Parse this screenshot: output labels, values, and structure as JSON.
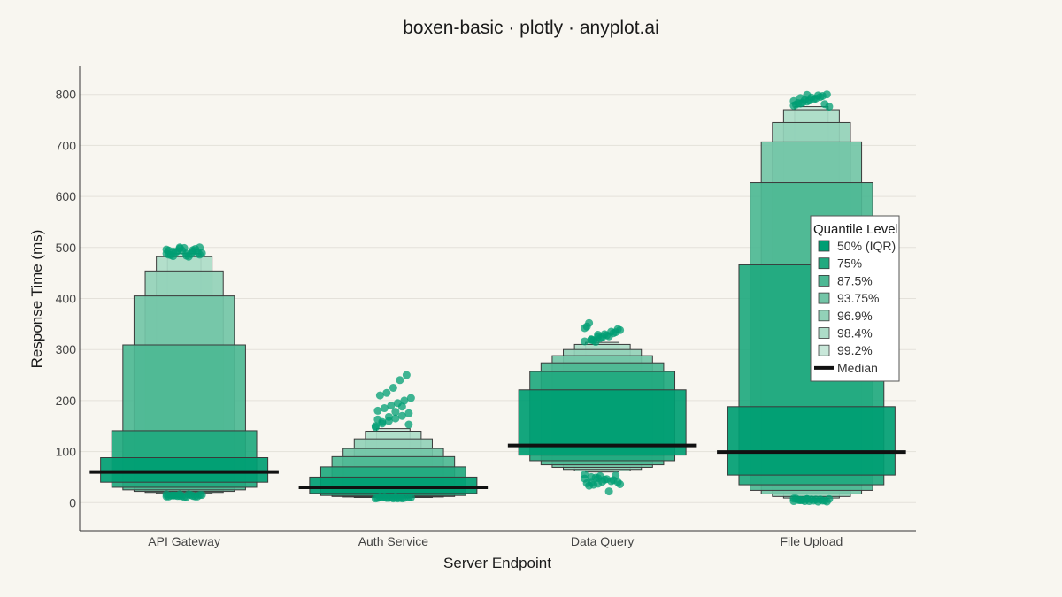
{
  "chart_data": {
    "type": "boxen",
    "title": "boxen-basic · plotly · anyplot.ai",
    "xlabel": "Server Endpoint",
    "ylabel": "Response Time (ms)",
    "categories": [
      "API Gateway",
      "Auth Service",
      "Data Query",
      "File Upload"
    ],
    "ylim": [
      -55,
      855
    ],
    "yticks": [
      0,
      100,
      200,
      300,
      400,
      500,
      600,
      700,
      800
    ],
    "grid": true,
    "legend": {
      "title": "Quantile Level",
      "placement": "right",
      "entries": [
        {
          "label": "50% (IQR)",
          "color": "#009E73"
        },
        {
          "label": "75%",
          "color": "#21A97F"
        },
        {
          "label": "87.5%",
          "color": "#4DB894"
        },
        {
          "label": "93.75%",
          "color": "#73C5A7"
        },
        {
          "label": "96.9%",
          "color": "#92D1B8"
        },
        {
          "label": "98.4%",
          "color": "#ADDCC8"
        },
        {
          "label": "99.2%",
          "color": "#C8E7D9"
        },
        {
          "label": "Median",
          "color": "#111111"
        }
      ]
    },
    "series": [
      {
        "category": "API Gateway",
        "median": 60,
        "levels": [
          {
            "level": "50% (IQR)",
            "low": 40,
            "high": 88
          },
          {
            "level": "75%",
            "low": 30,
            "high": 141
          },
          {
            "level": "87.5%",
            "low": 25,
            "high": 309
          },
          {
            "level": "93.75%",
            "low": 22,
            "high": 405
          },
          {
            "level": "96.9%",
            "low": 20,
            "high": 454
          },
          {
            "level": "98.4%",
            "low": 18,
            "high": 482
          },
          {
            "level": "99.2%",
            "low": 16,
            "high": 488
          }
        ],
        "outliers_low": [
          12,
          14,
          16,
          11,
          13,
          15,
          12,
          14,
          13,
          16,
          12,
          15,
          14,
          13,
          11,
          15,
          12,
          16,
          14,
          13
        ],
        "outliers_high": [
          488,
          492,
          498,
          484,
          495,
          500,
          486,
          490,
          494,
          482,
          497,
          489,
          485,
          493,
          499,
          487,
          491,
          496,
          483,
          500,
          488,
          492,
          486,
          494
        ]
      },
      {
        "category": "Auth Service",
        "median": 30,
        "levels": [
          {
            "level": "50% (IQR)",
            "low": 18,
            "high": 50
          },
          {
            "level": "75%",
            "low": 14,
            "high": 70
          },
          {
            "level": "87.5%",
            "low": 12,
            "high": 90
          },
          {
            "level": "93.75%",
            "low": 11,
            "high": 106
          },
          {
            "level": "96.9%",
            "low": 10,
            "high": 125
          },
          {
            "level": "98.4%",
            "low": 10,
            "high": 140
          },
          {
            "level": "99.2%",
            "low": 9,
            "high": 145
          }
        ],
        "outliers_low": [
          8,
          10,
          9,
          11,
          8,
          10,
          9,
          11,
          10,
          8,
          9,
          10,
          11,
          9,
          8,
          10
        ],
        "outliers_high": [
          150,
          155,
          160,
          165,
          170,
          175,
          180,
          185,
          190,
          195,
          200,
          205,
          210,
          215,
          225,
          240,
          250,
          148,
          158,
          168,
          178,
          188,
          153,
          163
        ]
      },
      {
        "category": "Data Query",
        "median": 112,
        "levels": [
          {
            "level": "50% (IQR)",
            "low": 93,
            "high": 221
          },
          {
            "level": "75%",
            "low": 82,
            "high": 257
          },
          {
            "level": "87.5%",
            "low": 74,
            "high": 274
          },
          {
            "level": "93.75%",
            "low": 69,
            "high": 288
          },
          {
            "level": "96.9%",
            "low": 65,
            "high": 300
          },
          {
            "level": "98.4%",
            "low": 62,
            "high": 310
          },
          {
            "level": "99.2%",
            "low": 60,
            "high": 314
          }
        ],
        "outliers_low": [
          55,
          50,
          48,
          45,
          42,
          40,
          38,
          35,
          52,
          46,
          44,
          36,
          33,
          49,
          41,
          22,
          53,
          47,
          39,
          37
        ],
        "outliers_high": [
          316,
          320,
          325,
          330,
          335,
          340,
          345,
          318,
          322,
          328,
          332,
          338,
          352,
          315,
          324,
          326,
          334,
          342,
          319,
          329
        ]
      },
      {
        "category": "File Upload",
        "median": 99,
        "levels": [
          {
            "level": "50% (IQR)",
            "low": 54,
            "high": 188
          },
          {
            "level": "75%",
            "low": 35,
            "high": 466
          },
          {
            "level": "87.5%",
            "low": 24,
            "high": 627
          },
          {
            "level": "93.75%",
            "low": 17,
            "high": 707
          },
          {
            "level": "96.9%",
            "low": 12,
            "high": 745
          },
          {
            "level": "98.4%",
            "low": 9,
            "high": 770
          },
          {
            "level": "99.2%",
            "low": 8,
            "high": 776
          }
        ],
        "outliers_low": [
          3,
          5,
          7,
          4,
          6,
          2,
          8,
          5,
          3,
          6,
          4,
          7,
          5,
          3,
          6,
          2,
          4,
          8,
          5,
          7
        ],
        "outliers_high": [
          778,
          782,
          786,
          790,
          795,
          800,
          780,
          784,
          788,
          792,
          797,
          776,
          783,
          789,
          794,
          798,
          781,
          787,
          793,
          799
        ]
      }
    ]
  }
}
